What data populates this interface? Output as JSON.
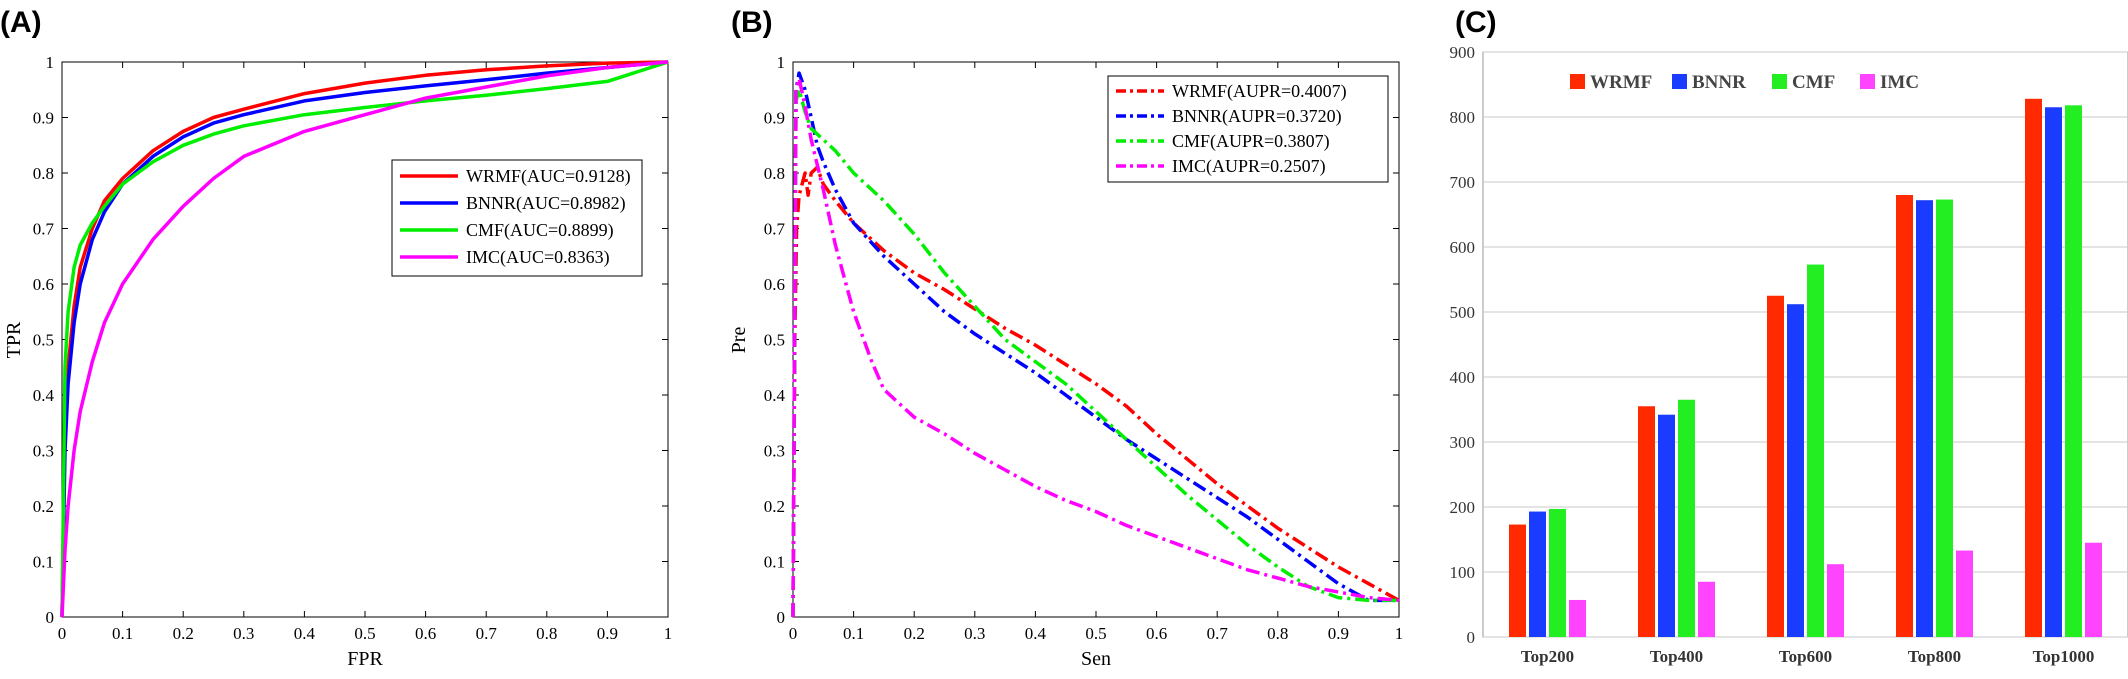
{
  "panels": {
    "a_label": "(A)",
    "b_label": "(B)",
    "c_label": "(C)"
  },
  "chart_data": [
    {
      "type": "line",
      "panel": "(A)",
      "xlabel": "FPR",
      "ylabel": "TPR",
      "xlim": [
        0,
        1
      ],
      "ylim": [
        0,
        1
      ],
      "xticks": [
        "0",
        "0.1",
        "0.2",
        "0.3",
        "0.4",
        "0.5",
        "0.6",
        "0.7",
        "0.8",
        "0.9",
        "1"
      ],
      "yticks": [
        "0",
        "0.1",
        "0.2",
        "0.3",
        "0.4",
        "0.5",
        "0.6",
        "0.7",
        "0.8",
        "0.9",
        "1"
      ],
      "legend_position": "center-right",
      "series": [
        {
          "name": "WRMF(AUC=0.9128)",
          "color": "#ff0000",
          "dash": "solid",
          "x": [
            0,
            0.005,
            0.01,
            0.02,
            0.03,
            0.05,
            0.07,
            0.1,
            0.15,
            0.2,
            0.25,
            0.3,
            0.4,
            0.5,
            0.6,
            0.7,
            0.8,
            0.9,
            1.0
          ],
          "y": [
            0,
            0.35,
            0.45,
            0.56,
            0.63,
            0.7,
            0.75,
            0.79,
            0.84,
            0.875,
            0.9,
            0.915,
            0.943,
            0.962,
            0.976,
            0.986,
            0.993,
            0.998,
            1.0
          ]
        },
        {
          "name": "BNNR(AUC=0.8982)",
          "color": "#0000ff",
          "dash": "solid",
          "x": [
            0,
            0.005,
            0.01,
            0.02,
            0.03,
            0.05,
            0.07,
            0.1,
            0.15,
            0.2,
            0.25,
            0.3,
            0.4,
            0.5,
            0.6,
            0.7,
            0.8,
            0.9,
            1.0
          ],
          "y": [
            0,
            0.3,
            0.42,
            0.53,
            0.6,
            0.68,
            0.73,
            0.78,
            0.83,
            0.865,
            0.89,
            0.905,
            0.93,
            0.945,
            0.957,
            0.968,
            0.98,
            0.99,
            1.0
          ]
        },
        {
          "name": "CMF(AUC=0.8899)",
          "color": "#00ee00",
          "dash": "solid",
          "x": [
            0,
            0.005,
            0.01,
            0.02,
            0.03,
            0.05,
            0.07,
            0.1,
            0.15,
            0.2,
            0.25,
            0.3,
            0.4,
            0.5,
            0.6,
            0.7,
            0.8,
            0.9,
            1.0
          ],
          "y": [
            0,
            0.45,
            0.55,
            0.63,
            0.67,
            0.71,
            0.74,
            0.78,
            0.82,
            0.85,
            0.87,
            0.885,
            0.905,
            0.918,
            0.93,
            0.94,
            0.952,
            0.965,
            1.0
          ]
        },
        {
          "name": "IMC(AUC=0.8363)",
          "color": "#ff00ff",
          "dash": "solid",
          "x": [
            0,
            0.005,
            0.01,
            0.02,
            0.03,
            0.05,
            0.07,
            0.1,
            0.15,
            0.2,
            0.25,
            0.3,
            0.4,
            0.5,
            0.6,
            0.7,
            0.8,
            0.9,
            1.0
          ],
          "y": [
            0,
            0.12,
            0.2,
            0.3,
            0.37,
            0.46,
            0.53,
            0.6,
            0.68,
            0.74,
            0.79,
            0.83,
            0.875,
            0.905,
            0.935,
            0.955,
            0.975,
            0.99,
            1.0
          ]
        }
      ]
    },
    {
      "type": "line",
      "panel": "(B)",
      "xlabel": "Sen",
      "ylabel": "Pre",
      "xlim": [
        0,
        1
      ],
      "ylim": [
        0,
        1
      ],
      "xticks": [
        "0",
        "0.1",
        "0.2",
        "0.3",
        "0.4",
        "0.5",
        "0.6",
        "0.7",
        "0.8",
        "0.9",
        "1"
      ],
      "yticks": [
        "0",
        "0.1",
        "0.2",
        "0.3",
        "0.4",
        "0.5",
        "0.6",
        "0.7",
        "0.8",
        "0.9",
        "1"
      ],
      "legend_position": "top-right",
      "series": [
        {
          "name": "WRMF(AUPR=0.4007)",
          "color": "#ff0000",
          "dash": "dashdot",
          "x": [
            0,
            0.003,
            0.006,
            0.01,
            0.015,
            0.02,
            0.025,
            0.03,
            0.04,
            0.05,
            0.07,
            0.1,
            0.15,
            0.2,
            0.25,
            0.3,
            0.35,
            0.4,
            0.45,
            0.5,
            0.55,
            0.6,
            0.65,
            0.7,
            0.75,
            0.8,
            0.85,
            0.9,
            0.95,
            1.0
          ],
          "y": [
            0,
            0.5,
            0.7,
            0.76,
            0.78,
            0.8,
            0.76,
            0.8,
            0.81,
            0.78,
            0.75,
            0.71,
            0.66,
            0.62,
            0.59,
            0.555,
            0.52,
            0.49,
            0.455,
            0.42,
            0.38,
            0.33,
            0.285,
            0.24,
            0.2,
            0.16,
            0.125,
            0.09,
            0.06,
            0.03
          ]
        },
        {
          "name": "BNNR(AUPR=0.3720)",
          "color": "#0000ff",
          "dash": "dashdot",
          "x": [
            0,
            0.005,
            0.01,
            0.02,
            0.03,
            0.04,
            0.05,
            0.07,
            0.1,
            0.15,
            0.2,
            0.25,
            0.3,
            0.35,
            0.4,
            0.45,
            0.5,
            0.55,
            0.6,
            0.65,
            0.7,
            0.75,
            0.8,
            0.85,
            0.9,
            0.95,
            1.0
          ],
          "y": [
            0,
            0.95,
            0.98,
            0.95,
            0.9,
            0.85,
            0.82,
            0.77,
            0.71,
            0.65,
            0.6,
            0.55,
            0.51,
            0.475,
            0.44,
            0.4,
            0.36,
            0.32,
            0.285,
            0.25,
            0.215,
            0.18,
            0.14,
            0.1,
            0.06,
            0.03,
            0.03
          ]
        },
        {
          "name": "CMF(AUPR=0.3807)",
          "color": "#00ee00",
          "dash": "dashdot",
          "x": [
            0,
            0.005,
            0.01,
            0.02,
            0.03,
            0.05,
            0.07,
            0.1,
            0.15,
            0.2,
            0.25,
            0.3,
            0.35,
            0.4,
            0.45,
            0.5,
            0.55,
            0.6,
            0.65,
            0.7,
            0.75,
            0.8,
            0.85,
            0.9,
            0.95,
            1.0
          ],
          "y": [
            0,
            0.93,
            0.95,
            0.91,
            0.88,
            0.86,
            0.84,
            0.8,
            0.75,
            0.69,
            0.62,
            0.56,
            0.5,
            0.46,
            0.42,
            0.37,
            0.32,
            0.27,
            0.22,
            0.175,
            0.13,
            0.09,
            0.055,
            0.035,
            0.03,
            0.03
          ]
        },
        {
          "name": "IMC(AUPR=0.2507)",
          "color": "#ff00ff",
          "dash": "dashdot",
          "x": [
            0,
            0.005,
            0.01,
            0.02,
            0.03,
            0.05,
            0.07,
            0.1,
            0.13,
            0.15,
            0.2,
            0.25,
            0.3,
            0.35,
            0.4,
            0.45,
            0.5,
            0.55,
            0.6,
            0.65,
            0.7,
            0.75,
            0.8,
            0.85,
            0.9,
            0.95,
            1.0
          ],
          "y": [
            0,
            0.95,
            0.97,
            0.92,
            0.86,
            0.77,
            0.67,
            0.55,
            0.46,
            0.41,
            0.36,
            0.33,
            0.295,
            0.265,
            0.235,
            0.21,
            0.19,
            0.165,
            0.145,
            0.125,
            0.105,
            0.085,
            0.07,
            0.055,
            0.045,
            0.035,
            0.03
          ]
        }
      ]
    },
    {
      "type": "bar",
      "panel": "(C)",
      "categories": [
        "Top200",
        "Top400",
        "Top600",
        "Top800",
        "Top1000"
      ],
      "ylim": [
        0,
        900
      ],
      "yticks": [
        "0",
        "100",
        "200",
        "300",
        "400",
        "500",
        "600",
        "700",
        "800",
        "900"
      ],
      "legend_position": "top-left",
      "series": [
        {
          "name": "WRMF",
          "color": "#ff2a00",
          "values": [
            173,
            355,
            525,
            680,
            828
          ]
        },
        {
          "name": "BNNR",
          "color": "#1a3cff",
          "values": [
            193,
            342,
            512,
            672,
            815
          ]
        },
        {
          "name": "CMF",
          "color": "#22ee22",
          "values": [
            197,
            365,
            573,
            673,
            818
          ]
        },
        {
          "name": "IMC",
          "color": "#ff44ff",
          "values": [
            57,
            85,
            112,
            133,
            145
          ]
        }
      ]
    }
  ]
}
